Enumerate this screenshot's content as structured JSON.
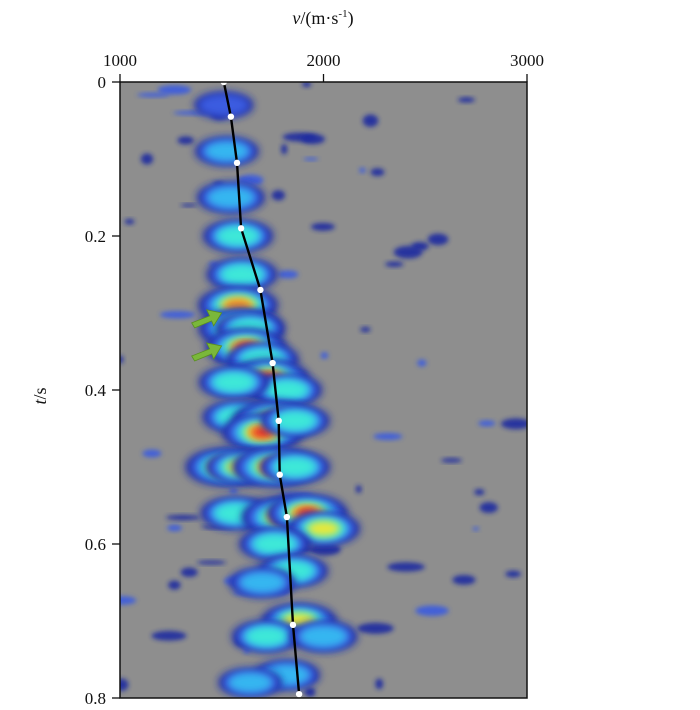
{
  "chart_data": {
    "type": "heatmap",
    "title": "",
    "xlabel": "v/(m·s⁻¹)",
    "ylabel": "t/s",
    "xlabel_parts": {
      "var": "v",
      "unit": "/(m·s",
      "exp": "-1",
      "close": ")"
    },
    "ylabel_parts": {
      "var": "t",
      "unit": "/s"
    },
    "x_position": "top",
    "xlim": [
      1000,
      3000
    ],
    "ylim": [
      0,
      0.8
    ],
    "y_inverted": true,
    "x_ticks": [
      1000,
      2000,
      3000
    ],
    "x_tick_labels": [
      "1000",
      "2000",
      "3000"
    ],
    "y_ticks": [
      0,
      0.2,
      0.4,
      0.6,
      0.8
    ],
    "y_tick_labels": [
      "0",
      "0.2",
      "0.4",
      "0.6",
      "0.8"
    ],
    "background_color": "#8e8e8e",
    "colormap": [
      "#1c2aa0",
      "#3a5be0",
      "#35b6f0",
      "#3ee8d8",
      "#e8e83a",
      "#f08a2a",
      "#e82a2a",
      "#d83a9a"
    ],
    "picked_velocity_curve": {
      "color": "#000000",
      "marker_color": "#ffffff",
      "points": [
        {
          "v": 1510,
          "t": 0.0
        },
        {
          "v": 1545,
          "t": 0.045
        },
        {
          "v": 1575,
          "t": 0.105
        },
        {
          "v": 1595,
          "t": 0.19
        },
        {
          "v": 1690,
          "t": 0.27
        },
        {
          "v": 1750,
          "t": 0.365
        },
        {
          "v": 1780,
          "t": 0.44
        },
        {
          "v": 1785,
          "t": 0.51
        },
        {
          "v": 1820,
          "t": 0.565
        },
        {
          "v": 1850,
          "t": 0.705
        },
        {
          "v": 1880,
          "t": 0.795
        }
      ]
    },
    "energy_blobs": [
      {
        "v": 1510,
        "t": 0.03,
        "level": 0.35
      },
      {
        "v": 1525,
        "t": 0.09,
        "level": 0.45
      },
      {
        "v": 1545,
        "t": 0.15,
        "level": 0.55
      },
      {
        "v": 1580,
        "t": 0.2,
        "level": 0.6
      },
      {
        "v": 1600,
        "t": 0.25,
        "level": 0.62
      },
      {
        "v": 1580,
        "t": 0.29,
        "level": 0.82
      },
      {
        "v": 1590,
        "t": 0.32,
        "level": 0.9
      },
      {
        "v": 1640,
        "t": 0.32,
        "level": 0.58
      },
      {
        "v": 1620,
        "t": 0.345,
        "level": 0.85
      },
      {
        "v": 1700,
        "t": 0.36,
        "level": 0.65
      },
      {
        "v": 1730,
        "t": 0.385,
        "level": 0.86
      },
      {
        "v": 1820,
        "t": 0.4,
        "level": 0.6
      },
      {
        "v": 1560,
        "t": 0.39,
        "level": 0.6
      },
      {
        "v": 1580,
        "t": 0.435,
        "level": 0.62
      },
      {
        "v": 1760,
        "t": 0.44,
        "level": 0.93
      },
      {
        "v": 1700,
        "t": 0.455,
        "level": 0.84
      },
      {
        "v": 1860,
        "t": 0.44,
        "level": 0.58
      },
      {
        "v": 1520,
        "t": 0.5,
        "level": 0.84
      },
      {
        "v": 1600,
        "t": 0.5,
        "level": 0.66
      },
      {
        "v": 1760,
        "t": 0.5,
        "level": 0.93
      },
      {
        "v": 1860,
        "t": 0.5,
        "level": 0.6
      },
      {
        "v": 1570,
        "t": 0.56,
        "level": 0.62
      },
      {
        "v": 1810,
        "t": 0.565,
        "level": 0.98
      },
      {
        "v": 1920,
        "t": 0.56,
        "level": 0.85
      },
      {
        "v": 2000,
        "t": 0.58,
        "level": 0.66
      },
      {
        "v": 1760,
        "t": 0.6,
        "level": 0.62
      },
      {
        "v": 1850,
        "t": 0.635,
        "level": 0.6
      },
      {
        "v": 1700,
        "t": 0.65,
        "level": 0.5
      },
      {
        "v": 1880,
        "t": 0.7,
        "level": 0.72
      },
      {
        "v": 1720,
        "t": 0.72,
        "level": 0.58
      },
      {
        "v": 2000,
        "t": 0.72,
        "level": 0.55
      },
      {
        "v": 1820,
        "t": 0.77,
        "level": 0.5
      },
      {
        "v": 1640,
        "t": 0.78,
        "level": 0.45
      }
    ],
    "annotations": [
      {
        "type": "arrow",
        "color": "#7ab83a",
        "v": 1470,
        "t": 0.305
      },
      {
        "type": "arrow",
        "color": "#7ab83a",
        "v": 1470,
        "t": 0.348
      }
    ]
  }
}
